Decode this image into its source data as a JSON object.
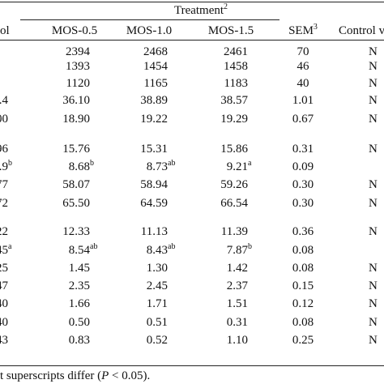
{
  "header": {
    "treatment_group": "Treatment",
    "treatment_sup": "2",
    "col_control": "ol",
    "col_mos05": "MOS-0.5",
    "col_mos10": "MOS-1.0",
    "col_mos15": "MOS-1.5",
    "col_sem": "SEM",
    "col_sem_sup": "3",
    "col_contrast": "Control v"
  },
  "rows": [
    {
      "control": "",
      "control_sup": "",
      "mos05": "2394",
      "mos05_sup": "",
      "mos10": "2468",
      "mos10_sup": "",
      "mos15": "2461",
      "mos15_sup": "",
      "sem": "70",
      "contrast": "N"
    },
    {
      "control": "",
      "control_sup": "",
      "mos05": "1393",
      "mos05_sup": "",
      "mos10": "1454",
      "mos10_sup": "",
      "mos15": "1458",
      "mos15_sup": "",
      "sem": "46",
      "contrast": "N"
    },
    {
      "control": "",
      "control_sup": "",
      "mos05": "1120",
      "mos05_sup": "",
      "mos10": "1165",
      "mos10_sup": "",
      "mos15": "1183",
      "mos15_sup": "",
      "sem": "40",
      "contrast": "N"
    },
    {
      "control": ".4",
      "control_sup": "",
      "mos05": "36.10",
      "mos05_sup": "",
      "mos10": "38.89",
      "mos10_sup": "",
      "mos15": "38.57",
      "mos15_sup": "",
      "sem": "1.01",
      "contrast": "N"
    },
    {
      "control": ".00",
      "control_sup": "",
      "mos05": "18.90",
      "mos05_sup": "",
      "mos10": "19.22",
      "mos10_sup": "",
      "mos15": "19.29",
      "mos15_sup": "",
      "sem": "0.67",
      "contrast": "N"
    },
    {
      "control": ".96",
      "control_sup": "",
      "mos05": "15.76",
      "mos05_sup": "",
      "mos10": "15.31",
      "mos10_sup": "",
      "mos15": "15.86",
      "mos15_sup": "",
      "sem": "0.31",
      "contrast": "N"
    },
    {
      "control": ".9",
      "control_sup": "b",
      "mos05": "8.68",
      "mos05_sup": "b",
      "mos10": "8.73",
      "mos10_sup": "ab",
      "mos15": "9.21",
      "mos15_sup": "a",
      "sem": "0.09",
      "contrast": ""
    },
    {
      "control": ".77",
      "control_sup": "",
      "mos05": "58.07",
      "mos05_sup": "",
      "mos10": "58.94",
      "mos10_sup": "",
      "mos15": "59.26",
      "mos15_sup": "",
      "sem": "0.30",
      "contrast": "N"
    },
    {
      "control": ".72",
      "control_sup": "",
      "mos05": "65.50",
      "mos05_sup": "",
      "mos10": "64.59",
      "mos10_sup": "",
      "mos15": "66.54",
      "mos15_sup": "",
      "sem": "0.30",
      "contrast": "N"
    },
    {
      "control": ".22",
      "control_sup": "",
      "mos05": "12.33",
      "mos05_sup": "",
      "mos10": "11.13",
      "mos10_sup": "",
      "mos15": "11.39",
      "mos15_sup": "",
      "sem": "0.36",
      "contrast": "N"
    },
    {
      "control": ".45",
      "control_sup": "a",
      "mos05": "8.54",
      "mos05_sup": "ab",
      "mos10": "8.43",
      "mos10_sup": "ab",
      "mos15": "7.87",
      "mos15_sup": "b",
      "sem": "0.08",
      "contrast": ""
    },
    {
      "control": ".25",
      "control_sup": "",
      "mos05": "1.45",
      "mos05_sup": "",
      "mos10": "1.30",
      "mos10_sup": "",
      "mos15": "1.42",
      "mos15_sup": "",
      "sem": "0.08",
      "contrast": "N"
    },
    {
      "control": ".47",
      "control_sup": "",
      "mos05": "2.35",
      "mos05_sup": "",
      "mos10": "2.45",
      "mos10_sup": "",
      "mos15": "2.37",
      "mos15_sup": "",
      "sem": "0.15",
      "contrast": "N"
    },
    {
      "control": ".40",
      "control_sup": "",
      "mos05": "1.66",
      "mos05_sup": "",
      "mos10": "1.71",
      "mos10_sup": "",
      "mos15": "1.51",
      "mos15_sup": "",
      "sem": "0.12",
      "contrast": "N"
    },
    {
      "control": ".40",
      "control_sup": "",
      "mos05": "0.50",
      "mos05_sup": "",
      "mos10": "0.51",
      "mos10_sup": "",
      "mos15": "0.31",
      "mos15_sup": "",
      "sem": "0.08",
      "contrast": "N"
    },
    {
      "control": ".43",
      "control_sup": "",
      "mos05": "0.83",
      "mos05_sup": "",
      "mos10": "0.52",
      "mos10_sup": "",
      "mos15": "1.10",
      "mos15_sup": "",
      "sem": "0.25",
      "contrast": "N"
    }
  ],
  "footnote": {
    "prefix": "t superscripts differ (",
    "p": "P",
    "suffix": " < 0.05)."
  }
}
